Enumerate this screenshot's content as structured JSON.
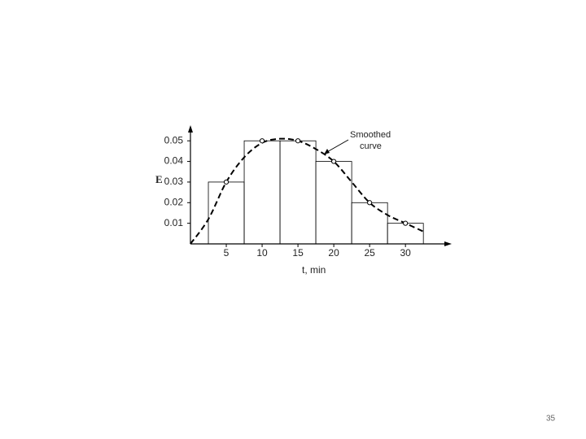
{
  "chart_data": {
    "type": "histogram",
    "bins": [
      2.5,
      7.5,
      12.5,
      17.5,
      22.5,
      27.5,
      32.5
    ],
    "values": [
      0.03,
      0.05,
      0.05,
      0.04,
      0.02,
      0.01
    ],
    "curve": {
      "x": [
        0,
        2.5,
        5,
        7.5,
        10,
        12.5,
        15,
        17.5,
        20,
        22.5,
        25,
        27.5,
        30,
        32.5
      ],
      "values": [
        0,
        0.012,
        0.03,
        0.042,
        0.049,
        0.051,
        0.05,
        0.046,
        0.04,
        0.03,
        0.02,
        0.014,
        0.01,
        0.006
      ]
    },
    "points": {
      "x": [
        5,
        10,
        15,
        20,
        25,
        30
      ],
      "values": [
        0.03,
        0.05,
        0.05,
        0.04,
        0.02,
        0.01
      ]
    },
    "annotation": [
      "Smoothed",
      "curve"
    ],
    "y_label": "E",
    "x_label": "t, min",
    "xlim": [
      0,
      36
    ],
    "ylim": [
      0,
      0.056
    ],
    "xticks": [
      5,
      10,
      15,
      20,
      25,
      30
    ],
    "yticks": [
      0.01,
      0.02,
      0.03,
      0.04,
      0.05
    ],
    "color": "#000000"
  },
  "page_number": "35"
}
